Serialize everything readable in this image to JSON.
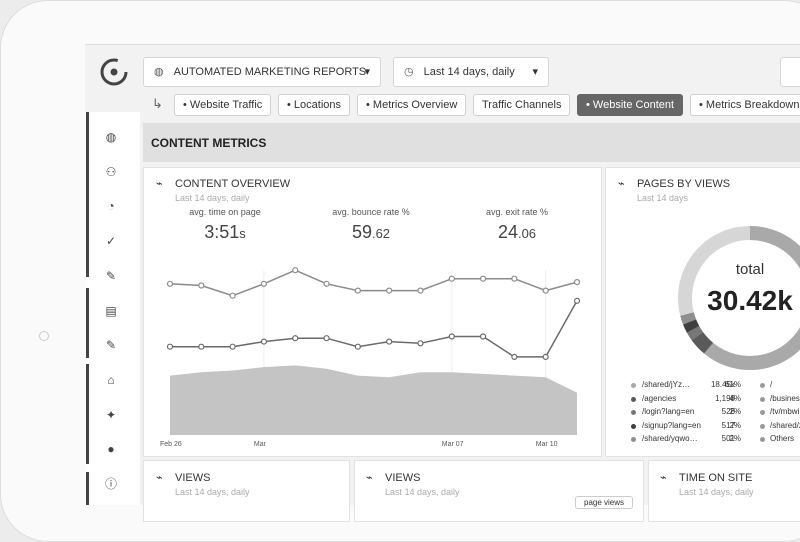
{
  "header": {
    "report_menu": "AUTOMATED MARKETING REPORTS",
    "date_menu": "Last 14 days, daily"
  },
  "tabs": [
    "Website Traffic",
    "Locations",
    "Metrics Overview",
    "Traffic Channels",
    "Website Content",
    "Metrics Breakdowns"
  ],
  "active_tab": 4,
  "section_title": "CONTENT METRICS",
  "overview": {
    "title": "CONTENT OVERVIEW",
    "subtitle": "Last 14 days, daily",
    "metrics": [
      {
        "label": "avg. time on page",
        "main": "3:51",
        "minor": "s"
      },
      {
        "label": "avg. bounce rate %",
        "main": "59",
        "minor": ".62"
      },
      {
        "label": "avg. exit rate %",
        "main": "24",
        "minor": ".06"
      }
    ],
    "chart": {
      "type": "line",
      "categories": [
        "Feb 26",
        null,
        null,
        "Mar",
        null,
        null,
        null,
        null,
        null,
        "Mar 07",
        null,
        null,
        "Mar 10",
        null
      ],
      "ylim": [
        0,
        100
      ],
      "series": [
        {
          "color": "#8a8a8a",
          "values": [
            86,
            85,
            79,
            86,
            94,
            86,
            82,
            82,
            82,
            89,
            89,
            89,
            82,
            87
          ]
        },
        {
          "color": "#6a6a6a",
          "values": [
            49,
            49,
            49,
            52,
            54,
            54,
            49,
            52,
            51,
            55,
            55,
            43,
            43,
            76
          ]
        },
        {
          "color": "#c4c4c4",
          "area": true,
          "values": [
            32,
            34,
            35,
            37,
            38,
            36,
            32,
            31,
            34,
            34,
            33,
            32,
            31,
            22
          ]
        }
      ]
    }
  },
  "pages": {
    "title": "PAGES BY VIEWS",
    "subtitle": "Last 14 days",
    "total_label": "total",
    "total": "30.42k",
    "donut": {
      "type": "pie",
      "values": [
        61,
        4,
        2,
        2,
        2
      ],
      "colors": [
        "#a9a9a9",
        "#5a5a5a",
        "#777777",
        "#3f3f3f",
        "#8e8e8e"
      ]
    },
    "legend": [
      {
        "name": "/shared/jYz…",
        "views": "18.45k",
        "share": "61%"
      },
      {
        "name": "/agencies",
        "views": "1,198",
        "share": "4%"
      },
      {
        "name": "/login?lang=en",
        "views": "526",
        "share": "2%"
      },
      {
        "name": "/signup?lang=en",
        "views": "517",
        "share": "2%"
      },
      {
        "name": "/shared/yqwo…",
        "views": "501",
        "share": "2%"
      }
    ],
    "legend2": [
      "/",
      "/business",
      "/tv/mbwi",
      "/shared/z",
      "Others"
    ]
  },
  "bottom_cards": [
    {
      "title": "VIEWS",
      "subtitle": "Last 14 days, daily"
    },
    {
      "title": "VIEWS",
      "subtitle": "Last 14 days, daily",
      "button": "page views"
    },
    {
      "title": "TIME ON SITE",
      "subtitle": "Last 14 days, daily"
    }
  ]
}
